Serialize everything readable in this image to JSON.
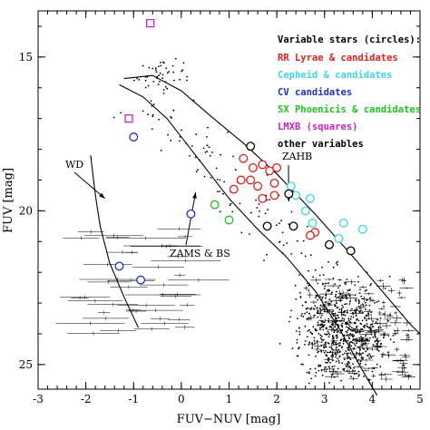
{
  "chart_data": {
    "type": "scatter",
    "title": "",
    "xlabel": "FUV−NUV [mag]",
    "ylabel": "FUV [mag]",
    "xlim": [
      -3,
      5
    ],
    "ylim": [
      13.5,
      25.8
    ],
    "y_inverted": true,
    "x_ticks": [
      -3,
      -2,
      -1,
      0,
      1,
      2,
      3,
      4,
      5
    ],
    "y_ticks": [
      15,
      20,
      25
    ],
    "grid": false,
    "legend_position": "top-right",
    "legend": {
      "title": "Variable stars (circles):",
      "items": [
        {
          "label": "RR Lyrae & candidates",
          "color": "#e0201b"
        },
        {
          "label": "Cepheid & candidates",
          "color": "#3fd3e6"
        },
        {
          "label": "CV candidates",
          "color": "#2030c0"
        },
        {
          "label": "SX Phoenicis & candidates",
          "color": "#20c020"
        },
        {
          "label": "LMXB (squares)",
          "color": "#d020c8"
        },
        {
          "label": "other variables",
          "color": "#000000"
        }
      ]
    },
    "annotations": [
      {
        "text": "WD",
        "arrow_to": [
          -1.6,
          19.6
        ]
      },
      {
        "text": "ZAHB",
        "arrow_to": [
          2.25,
          19.7
        ]
      },
      {
        "text": "ZAMS & BS",
        "arrow_to": [
          0.3,
          19.4
        ]
      }
    ],
    "models": {
      "wd_sequence": [
        [
          -1.9,
          18.2
        ],
        [
          -1.8,
          19.5
        ],
        [
          -1.7,
          20.5
        ],
        [
          -1.5,
          21.7
        ],
        [
          -1.2,
          22.8
        ],
        [
          -0.9,
          23.8
        ]
      ],
      "zahb": [
        [
          -1.2,
          15.7
        ],
        [
          -0.6,
          15.6
        ],
        [
          0.0,
          16.1
        ],
        [
          0.6,
          16.9
        ],
        [
          1.3,
          17.8
        ],
        [
          2.0,
          18.8
        ],
        [
          2.8,
          20.1
        ],
        [
          3.6,
          21.5
        ],
        [
          4.2,
          22.6
        ],
        [
          4.8,
          23.7
        ],
        [
          5.0,
          24.0
        ]
      ],
      "zams": [
        [
          -1.3,
          15.9
        ],
        [
          -0.8,
          16.3
        ],
        [
          -0.3,
          17.0
        ],
        [
          0.3,
          18.2
        ],
        [
          1.0,
          19.6
        ],
        [
          1.6,
          20.6
        ],
        [
          2.2,
          21.5
        ],
        [
          2.8,
          22.6
        ],
        [
          3.3,
          23.8
        ],
        [
          3.8,
          25.2
        ],
        [
          4.1,
          26.0
        ]
      ]
    },
    "series": [
      {
        "name": "RR Lyrae & candidates",
        "marker": "circle",
        "color": "#e0201b",
        "points": [
          [
            1.3,
            18.3
          ],
          [
            1.5,
            18.6
          ],
          [
            1.7,
            18.5
          ],
          [
            1.85,
            18.7
          ],
          [
            2.0,
            18.6
          ],
          [
            1.25,
            19.0
          ],
          [
            1.45,
            19.0
          ],
          [
            1.6,
            19.2
          ],
          [
            1.95,
            19.1
          ],
          [
            1.1,
            19.3
          ],
          [
            1.7,
            19.6
          ],
          [
            1.95,
            19.5
          ],
          [
            2.8,
            20.7
          ],
          [
            2.7,
            20.8
          ]
        ]
      },
      {
        "name": "Cepheid & candidates",
        "marker": "circle",
        "color": "#3fd3e6",
        "points": [
          [
            2.3,
            19.2
          ],
          [
            2.4,
            19.5
          ],
          [
            2.7,
            19.6
          ],
          [
            2.6,
            20.0
          ],
          [
            2.75,
            20.4
          ],
          [
            3.4,
            20.4
          ],
          [
            3.8,
            20.6
          ],
          [
            3.3,
            20.9
          ]
        ]
      },
      {
        "name": "CV candidates",
        "marker": "circle",
        "color": "#2030c0",
        "points": [
          [
            -1.0,
            17.6
          ],
          [
            0.2,
            20.1
          ],
          [
            -1.3,
            21.8
          ],
          [
            -0.85,
            22.25
          ]
        ]
      },
      {
        "name": "SX Phoenicis & candidates",
        "marker": "circle",
        "color": "#20c020",
        "points": [
          [
            0.7,
            19.8
          ],
          [
            1.0,
            20.3
          ]
        ]
      },
      {
        "name": "LMXB (squares)",
        "marker": "square",
        "color": "#d020c8",
        "points": [
          [
            -0.65,
            13.9
          ],
          [
            -1.1,
            17.0
          ]
        ]
      },
      {
        "name": "other variables",
        "marker": "circle",
        "color": "#000000",
        "points": [
          [
            1.45,
            17.9
          ],
          [
            2.25,
            19.45
          ],
          [
            1.8,
            20.5
          ],
          [
            2.35,
            20.5
          ],
          [
            3.1,
            21.1
          ],
          [
            3.55,
            21.3
          ]
        ]
      }
    ]
  }
}
